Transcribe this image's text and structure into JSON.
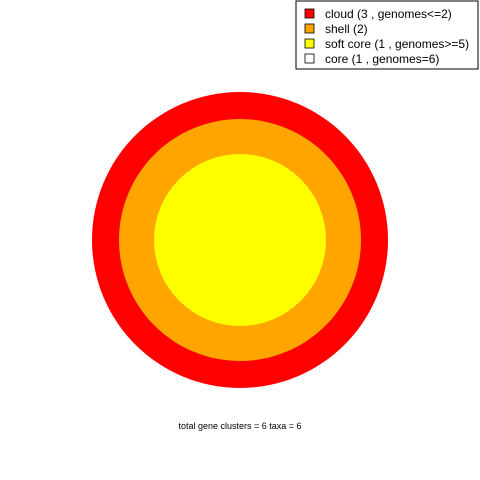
{
  "chart_data": {
    "type": "pie",
    "title": "",
    "chart_kind_detail": "concentric circles (pangenome core/shell/cloud)",
    "rings": [
      {
        "name": "cloud",
        "label": "cloud  (3 , genomes<=2)",
        "value": 3,
        "color": "#ff0000"
      },
      {
        "name": "shell",
        "label": "shell  (2)",
        "value": 2,
        "color": "#ffa500"
      },
      {
        "name": "soft core",
        "label": "soft core  (1 , genomes>=5)",
        "value": 1,
        "color": "#ffff00"
      },
      {
        "name": "core",
        "label": "core  (1 , genomes=6)",
        "value": 1,
        "color": "#ffffff"
      }
    ],
    "legend": {
      "placement": "top-right",
      "entries": [
        {
          "label": "cloud  (3 , genomes<=2)",
          "color": "#ff0000"
        },
        {
          "label": "shell  (2)",
          "color": "#ffa500"
        },
        {
          "label": "soft core  (1 , genomes>=5)",
          "color": "#ffff00"
        },
        {
          "label": "core  (1 , genomes=6)",
          "color": "#ffffff"
        }
      ]
    },
    "footer": "total gene clusters = 6   taxa = 6"
  }
}
